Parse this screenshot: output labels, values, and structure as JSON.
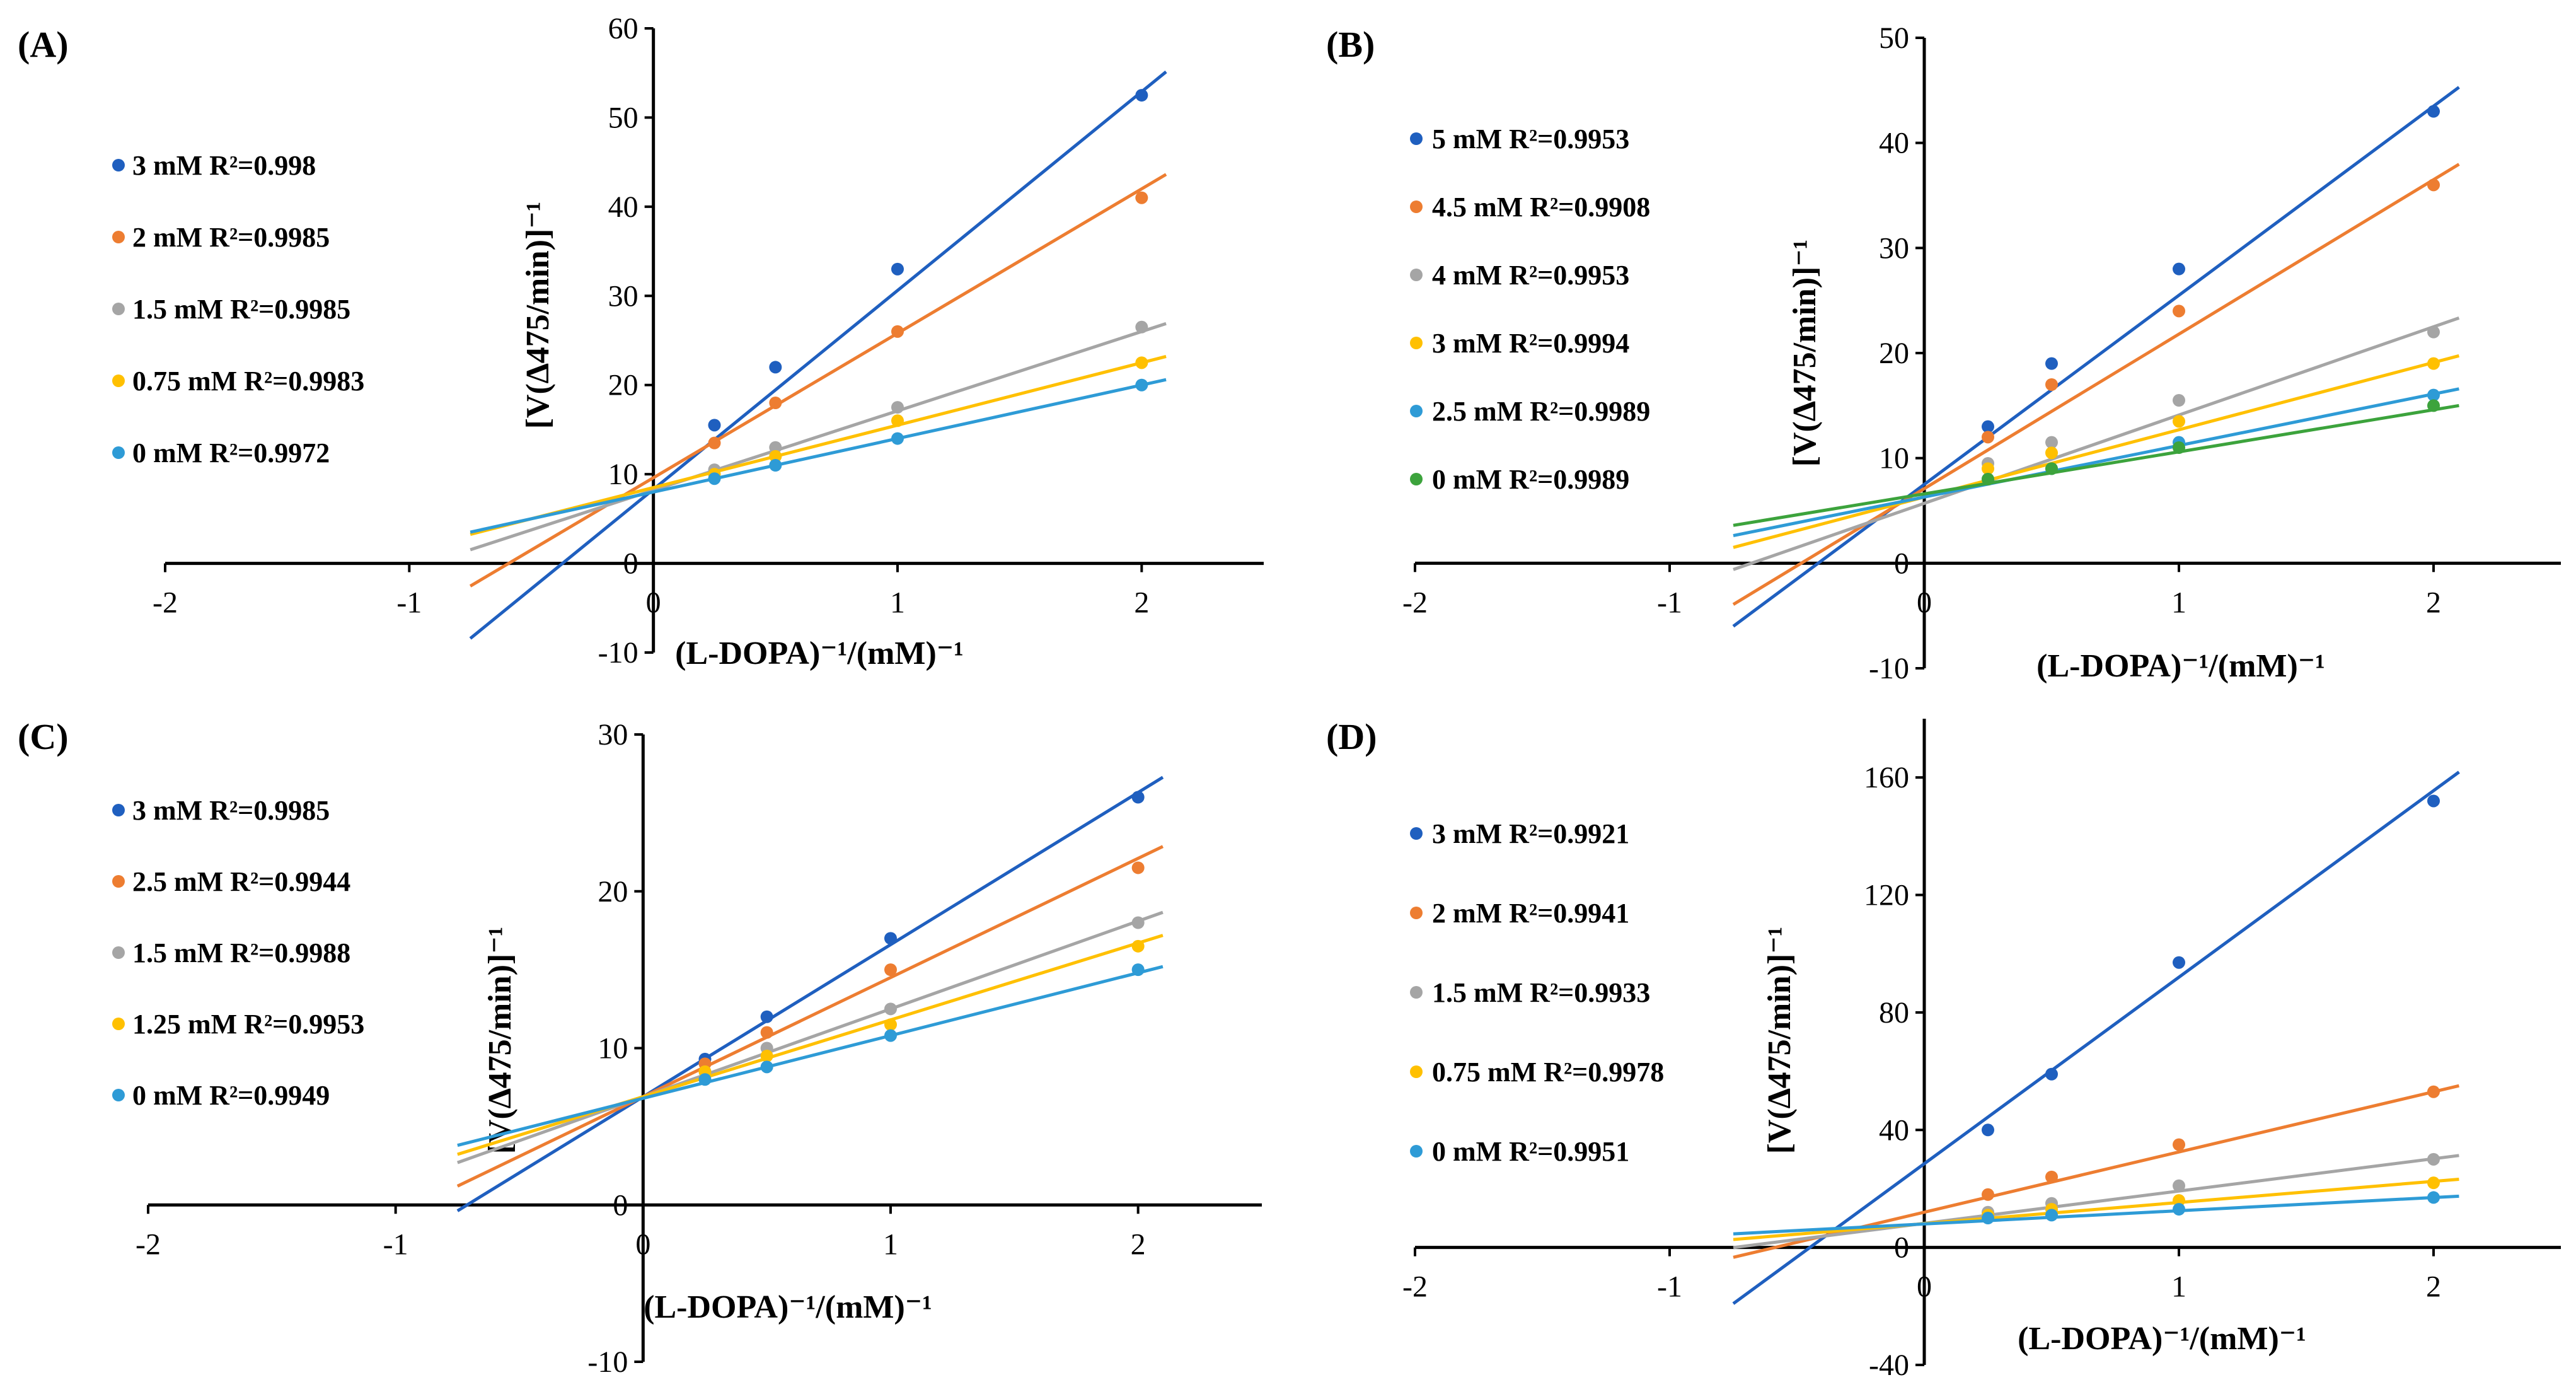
{
  "chart_data": [
    {
      "type": "scatter",
      "panel_label": "(A)",
      "xlabel": "(L-DOPA)⁻¹/(mM)⁻¹",
      "ylabel": "[V(∆475/min)]⁻¹",
      "xlim": [
        -2,
        2.5
      ],
      "ylim": [
        -10,
        60
      ],
      "x_ticks": [
        "-2",
        "-1",
        "0",
        "1",
        "2"
      ],
      "y_ticks": [
        "-10",
        "0",
        "10",
        "20",
        "30",
        "40",
        "50",
        "60"
      ],
      "x_tick_values": [
        -2,
        -1,
        0,
        1,
        2
      ],
      "y_tick_values": [
        -10,
        0,
        10,
        20,
        30,
        40,
        50,
        60
      ],
      "x": [
        0.25,
        0.5,
        1,
        2
      ],
      "trendline_range": [
        -0.75,
        2.1
      ],
      "series": [
        {
          "name": "3 mM R²=0.998",
          "color": "#1F5FBF",
          "values": [
            15.5,
            22,
            33,
            52.5
          ],
          "slope": 22.3,
          "intercept": 8.3
        },
        {
          "name": "2 mM R²=0.9985",
          "color": "#ED7D31",
          "values": [
            13.5,
            18,
            26,
            41
          ],
          "slope": 16.2,
          "intercept": 9.6
        },
        {
          "name": "1.5 mM R²=0.9985",
          "color": "#A5A5A5",
          "values": [
            10.5,
            13,
            17.5,
            26.5
          ],
          "slope": 8.9,
          "intercept": 8.2
        },
        {
          "name": "0.75 mM R²=0.9983",
          "color": "#FFC000",
          "values": [
            10,
            12,
            16,
            22.5
          ],
          "slope": 7.0,
          "intercept": 8.5
        },
        {
          "name": "0 mM R²=0.9972",
          "color": "#2E9BD6",
          "values": [
            9.5,
            11,
            14,
            20
          ],
          "slope": 6.0,
          "intercept": 8.0
        }
      ]
    },
    {
      "type": "scatter",
      "panel_label": "(B)",
      "xlabel": "(L-DOPA)⁻¹/(mM)⁻¹",
      "ylabel": "[V(∆475/min)]⁻¹",
      "xlim": [
        -2,
        2.5
      ],
      "ylim": [
        -10,
        50
      ],
      "x_ticks": [
        "-2",
        "-1",
        "0",
        "1",
        "2"
      ],
      "y_ticks": [
        "-10",
        "0",
        "10",
        "20",
        "30",
        "40",
        "50"
      ],
      "x_tick_values": [
        -2,
        -1,
        0,
        1,
        2
      ],
      "y_tick_values": [
        -10,
        0,
        10,
        20,
        30,
        40,
        50
      ],
      "x": [
        0.25,
        0.5,
        1,
        2
      ],
      "trendline_range": [
        -0.75,
        2.1
      ],
      "series": [
        {
          "name": "5 mM R²=0.9953",
          "color": "#1F5FBF",
          "values": [
            13,
            19,
            28,
            43
          ],
          "slope": 18.0,
          "intercept": 7.5
        },
        {
          "name": "4.5 mM R²=0.9908",
          "color": "#ED7D31",
          "values": [
            12,
            17,
            24,
            36
          ],
          "slope": 14.7,
          "intercept": 7.1
        },
        {
          "name": "4 mM R²=0.9953",
          "color": "#A5A5A5",
          "values": [
            9.5,
            11.5,
            15.5,
            22
          ],
          "slope": 8.4,
          "intercept": 5.7
        },
        {
          "name": "3 mM R²=0.9994",
          "color": "#FFC000",
          "values": [
            9,
            10.5,
            13.5,
            19
          ],
          "slope": 6.4,
          "intercept": 6.3
        },
        {
          "name": "2.5 mM R²=0.9989",
          "color": "#2E9BD6",
          "values": [
            8,
            9,
            11.5,
            16
          ],
          "slope": 4.9,
          "intercept": 6.3
        },
        {
          "name": "0 mM R²=0.9989",
          "color": "#3CA33C",
          "values": [
            8,
            9,
            11,
            15
          ],
          "slope": 4.0,
          "intercept": 6.6
        }
      ]
    },
    {
      "type": "scatter",
      "panel_label": "(C)",
      "xlabel": "(L-DOPA)⁻¹/(mM)⁻¹",
      "ylabel": "[V(∆475/min)]⁻¹",
      "xlim": [
        -2,
        2.5
      ],
      "ylim": [
        -10,
        30
      ],
      "x_ticks": [
        "-2",
        "-1",
        "0",
        "1",
        "2"
      ],
      "y_ticks": [
        "-10",
        "0",
        "10",
        "20",
        "30"
      ],
      "x_tick_values": [
        -2,
        -1,
        0,
        1,
        2
      ],
      "y_tick_values": [
        -10,
        0,
        10,
        20,
        30
      ],
      "x": [
        0.25,
        0.5,
        1,
        2
      ],
      "trendline_range": [
        -0.75,
        2.1
      ],
      "series": [
        {
          "name": "3 mM R²=0.9985",
          "color": "#1F5FBF",
          "values": [
            9.3,
            12,
            17,
            26
          ],
          "slope": 9.7,
          "intercept": 6.9
        },
        {
          "name": "2.5 mM R²=0.9944",
          "color": "#ED7D31",
          "values": [
            9,
            11,
            15,
            21.5
          ],
          "slope": 7.6,
          "intercept": 6.9
        },
        {
          "name": "1.5 mM R²=0.9988",
          "color": "#A5A5A5",
          "values": [
            8.5,
            10,
            12.5,
            18
          ],
          "slope": 5.6,
          "intercept": 6.9
        },
        {
          "name": "1.25 mM R²=0.9953",
          "color": "#FFC000",
          "values": [
            8.5,
            9.5,
            11.5,
            16.5
          ],
          "slope": 4.9,
          "intercept": 6.9
        },
        {
          "name": "0 mM R²=0.9949",
          "color": "#2E9BD6",
          "values": [
            8,
            8.8,
            10.8,
            15
          ],
          "slope": 4.0,
          "intercept": 6.8
        }
      ]
    },
    {
      "type": "scatter",
      "panel_label": "(D)",
      "xlabel": "(L-DOPA)⁻¹/(mM)⁻¹",
      "ylabel": "[V(∆475/min)]⁻¹",
      "xlim": [
        -2,
        2.5
      ],
      "ylim": [
        -40,
        180
      ],
      "x_ticks": [
        "-2",
        "-1",
        "0",
        "1",
        "2"
      ],
      "y_ticks": [
        "-40",
        "0",
        "40",
        "80",
        "120",
        "160"
      ],
      "x_tick_values": [
        -2,
        -1,
        0,
        1,
        2
      ],
      "y_tick_values": [
        -40,
        0,
        40,
        80,
        120,
        160
      ],
      "x": [
        0.25,
        0.5,
        1,
        2
      ],
      "trendline_range": [
        -0.75,
        2.1
      ],
      "series": [
        {
          "name": "3 mM R²=0.9921",
          "color": "#1F5FBF",
          "values": [
            40,
            59,
            97,
            152
          ],
          "slope": 63.5,
          "intercept": 28.5
        },
        {
          "name": "2 mM R²=0.9941",
          "color": "#ED7D31",
          "values": [
            18,
            24,
            35,
            53
          ],
          "slope": 20.5,
          "intercept": 12.0
        },
        {
          "name": "1.5 mM R²=0.9933",
          "color": "#A5A5A5",
          "values": [
            12,
            15,
            21,
            30
          ],
          "slope": 11.0,
          "intercept": 8.2
        },
        {
          "name": "0.75 mM R²=0.9978",
          "color": "#FFC000",
          "values": [
            11,
            13,
            16,
            22
          ],
          "slope": 7.2,
          "intercept": 8.1
        },
        {
          "name": "0 mM R²=0.9951",
          "color": "#2E9BD6",
          "values": [
            10,
            11,
            13,
            17
          ],
          "slope": 4.5,
          "intercept": 8.0
        }
      ]
    }
  ]
}
